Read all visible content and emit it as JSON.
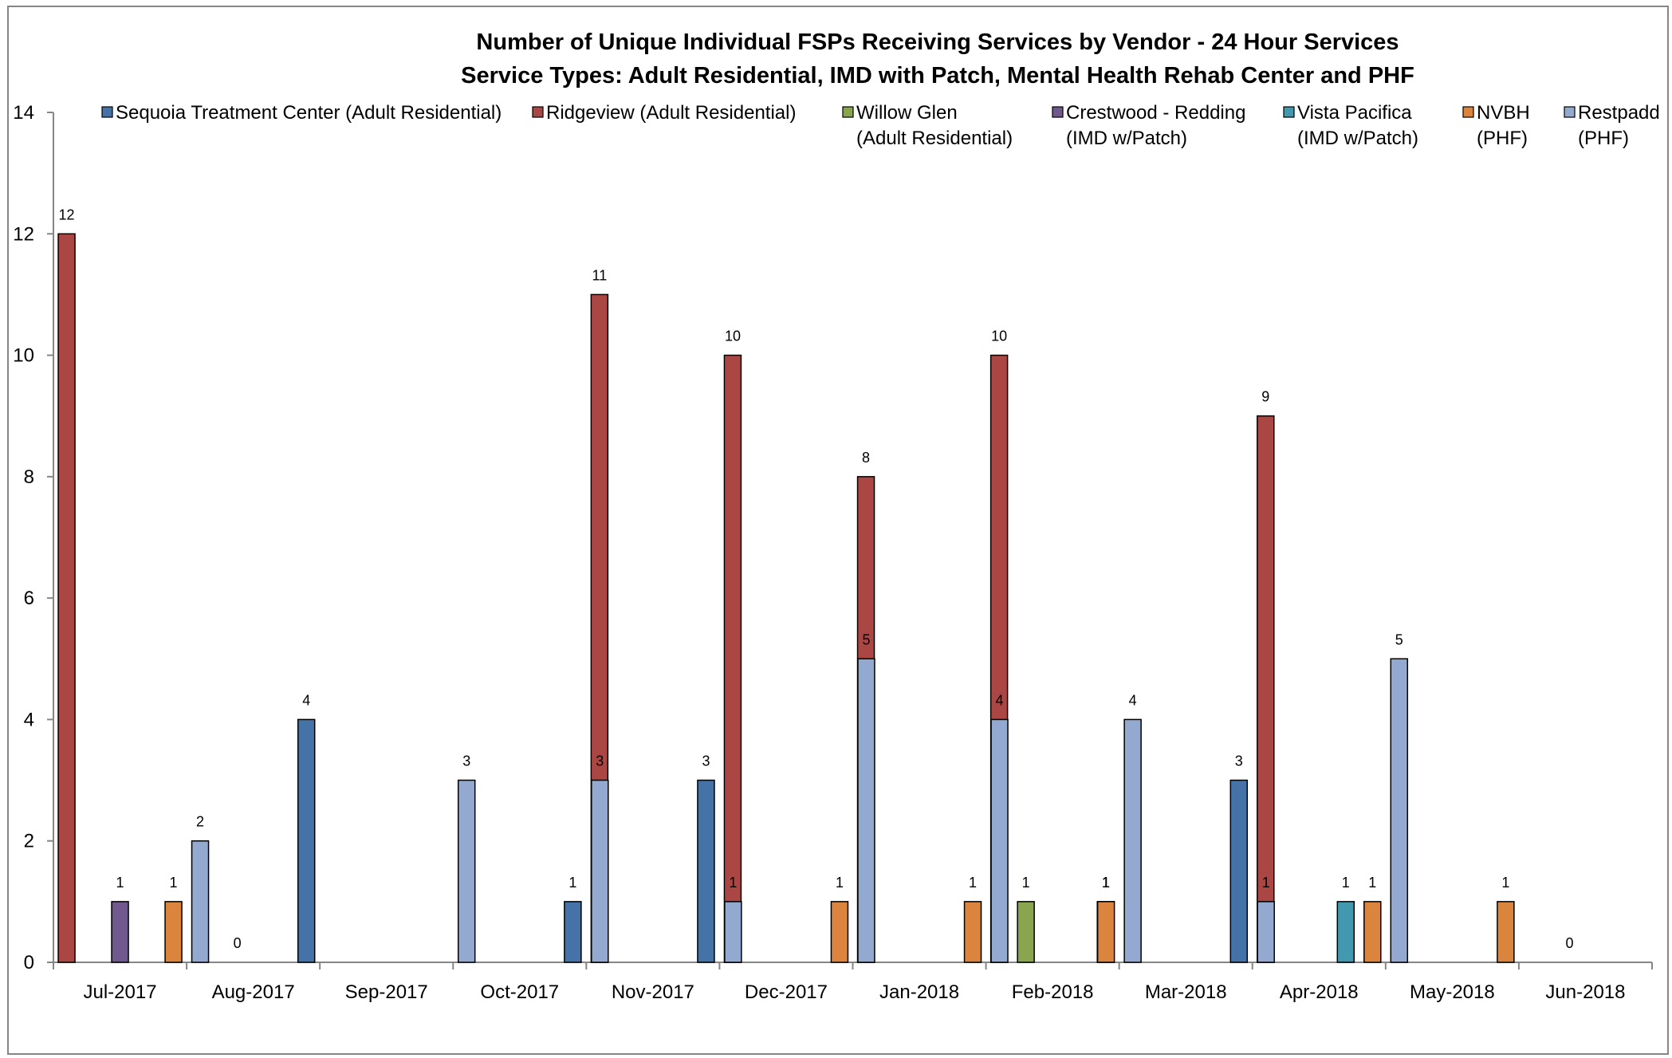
{
  "chart_data": {
    "type": "bar",
    "title": "Number of Unique Individual FSPs Receiving Services by Vendor - 24 Hour Services",
    "subtitle": "Service Types:  Adult Residential, IMD with Patch, Mental Health Rehab Center and PHF",
    "xlabel": "",
    "ylabel": "",
    "ylim": [
      0,
      14
    ],
    "yticks": [
      "0",
      "2",
      "4",
      "6",
      "8",
      "10",
      "12",
      "14"
    ],
    "grid": false,
    "legend_position": "top",
    "categories": [
      "Jul-2017",
      "Aug-2017",
      "Sep-2017",
      "Oct-2017",
      "Nov-2017",
      "Dec-2017",
      "Jan-2018",
      "Feb-2018",
      "Mar-2018",
      "Apr-2018",
      "May-2018",
      "Jun-2018"
    ],
    "series": [
      {
        "name": "Sequoia Treatment Center (Adult Residential)",
        "legend_lines": [
          "Sequoia Treatment Center (Adult Residential)"
        ],
        "color": "#4572a7",
        "values": [
          null,
          null,
          4,
          null,
          1,
          3,
          null,
          null,
          1,
          3,
          null,
          null
        ]
      },
      {
        "name": "Ridgeview (Adult Residential)",
        "legend_lines": [
          "Ridgeview (Adult Residential)"
        ],
        "color": "#aa4643",
        "values": [
          12,
          null,
          null,
          null,
          11,
          10,
          8,
          10,
          null,
          9,
          null,
          null
        ]
      },
      {
        "name": "Willow Glen (Adult Residential)",
        "legend_lines": [
          "Willow Glen",
          "(Adult Residential)"
        ],
        "color": "#89a54e",
        "values": [
          null,
          null,
          null,
          null,
          null,
          null,
          null,
          1,
          null,
          null,
          null,
          null
        ]
      },
      {
        "name": "Crestwood - Redding (IMD w/Patch)",
        "legend_lines": [
          "Crestwood - Redding",
          "(IMD w/Patch)"
        ],
        "color": "#71588f",
        "values": [
          1,
          null,
          null,
          null,
          null,
          null,
          null,
          null,
          null,
          null,
          null,
          null
        ]
      },
      {
        "name": "Vista Pacifica (IMD w/Patch)",
        "legend_lines": [
          "Vista Pacifica",
          "(IMD w/Patch)"
        ],
        "color": "#4198af",
        "values": [
          null,
          null,
          null,
          null,
          null,
          null,
          null,
          null,
          null,
          1,
          null,
          null
        ]
      },
      {
        "name": "NVBH (PHF)",
        "legend_lines": [
          "NVBH",
          "(PHF)"
        ],
        "color": "#db843d",
        "values": [
          1,
          null,
          null,
          null,
          null,
          1,
          1,
          1,
          null,
          1,
          1,
          null
        ]
      },
      {
        "name": "Restpadd (PHF)",
        "legend_lines": [
          "Restpadd",
          "(PHF)"
        ],
        "color": "#93a9cf",
        "values": [
          2,
          null,
          3,
          3,
          1,
          5,
          4,
          4,
          1,
          5,
          null,
          null
        ]
      }
    ],
    "zero_labels": [
      {
        "category": "Aug-2017",
        "value": 0
      },
      {
        "category": "Jun-2018",
        "value": 0
      }
    ]
  }
}
